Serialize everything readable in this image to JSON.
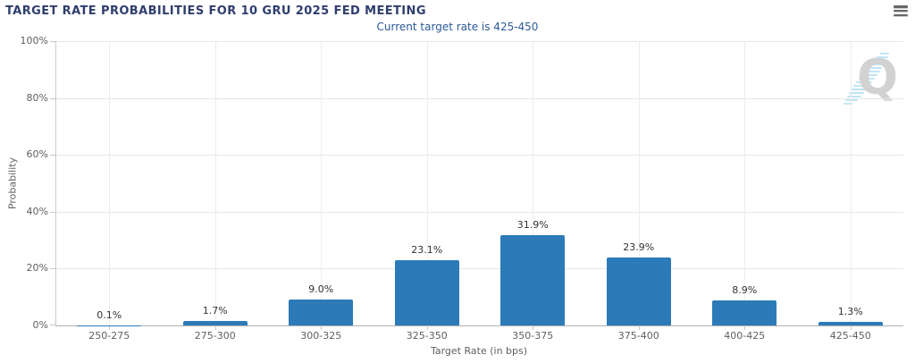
{
  "header": {
    "menu_icon": "hamburger-menu-icon",
    "watermark_icon": "q-logo-watermark",
    "watermark_letter": "Q"
  },
  "colors": {
    "title": "#2f3e6e",
    "subtitle": "#2c5a96",
    "bar": "#2c7bb8",
    "grid": "#e7e7e7",
    "axis_text": "#606060",
    "data_label": "#333333",
    "watermark_gray": "#d2d2d2",
    "watermark_blue": "#b9e2f3"
  },
  "chart_data": {
    "type": "bar",
    "title": "TARGET RATE PROBABILITIES FOR 10 GRU 2025 FED MEETING",
    "subtitle": "Current target rate is 425-450",
    "categories": [
      "250-275",
      "275-300",
      "300-325",
      "325-350",
      "350-375",
      "375-400",
      "400-425",
      "425-450"
    ],
    "values": [
      0.1,
      1.7,
      9.0,
      23.1,
      31.9,
      23.9,
      8.9,
      1.3
    ],
    "data_labels": [
      "0.1%",
      "1.7%",
      "9.0%",
      "23.1%",
      "31.9%",
      "23.9%",
      "8.9%",
      "1.3%"
    ],
    "xlabel": "Target Rate (in bps)",
    "ylabel": "Probability",
    "ylim": [
      0,
      100
    ],
    "yticks": [
      "0%",
      "20%",
      "40%",
      "60%",
      "80%",
      "100%"
    ],
    "grid": true,
    "legend": false,
    "bar_color": "#2c7bb8"
  }
}
